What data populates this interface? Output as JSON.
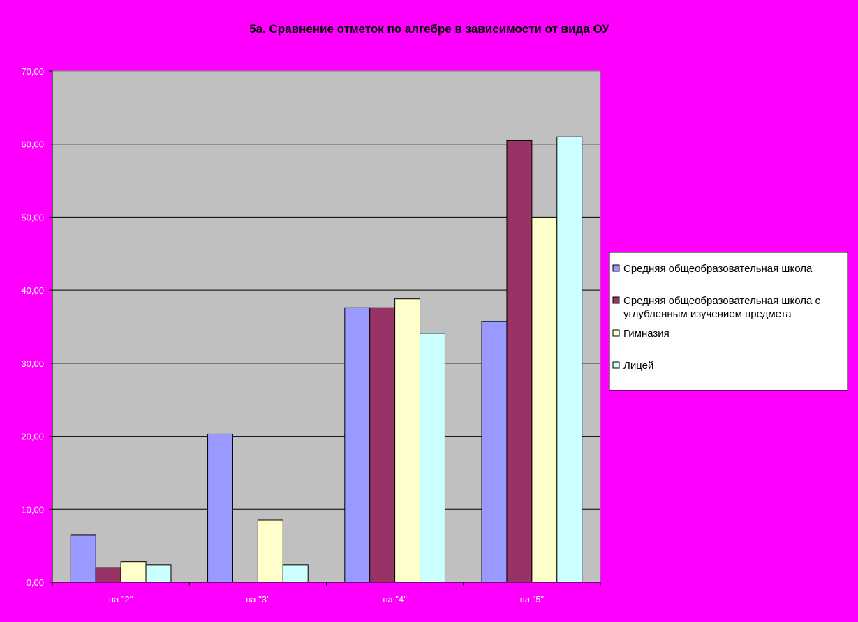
{
  "chart_data": {
    "type": "bar",
    "title": "5а. Сравнение отметок по алгебре в зависимости от вида ОУ",
    "xlabel": "",
    "ylabel": "",
    "ylim": [
      0,
      70
    ],
    "ytick_step": 10,
    "ytick_labels": [
      "0,00",
      "10,00",
      "20,00",
      "30,00",
      "40,00",
      "50,00",
      "60,00",
      "70,00"
    ],
    "categories": [
      "на \"2\"",
      "на \"3\"",
      "на \"4\"",
      "на \"5\""
    ],
    "grid": true,
    "legend_position": "right",
    "plot_background": "#c0c0c0",
    "background": "#ff00ff",
    "series": [
      {
        "name": "Средняя общеобразовательная школа",
        "color": "#9999ff",
        "values": [
          6.5,
          20.3,
          37.6,
          35.7
        ]
      },
      {
        "name": "Средняя общеобразовательная школа с углубленным изучением предмета",
        "legend_lines": [
          "Средняя общеобразовательная школа с",
          "углубленным изучением предмета"
        ],
        "color": "#993366",
        "values": [
          2.0,
          0.0,
          37.6,
          60.5
        ]
      },
      {
        "name": "Гимназия",
        "color": "#ffffcc",
        "values": [
          2.8,
          8.5,
          38.8,
          49.9
        ]
      },
      {
        "name": "Лицей",
        "color": "#ccffff",
        "values": [
          2.4,
          2.4,
          34.1,
          61.0
        ]
      }
    ]
  }
}
